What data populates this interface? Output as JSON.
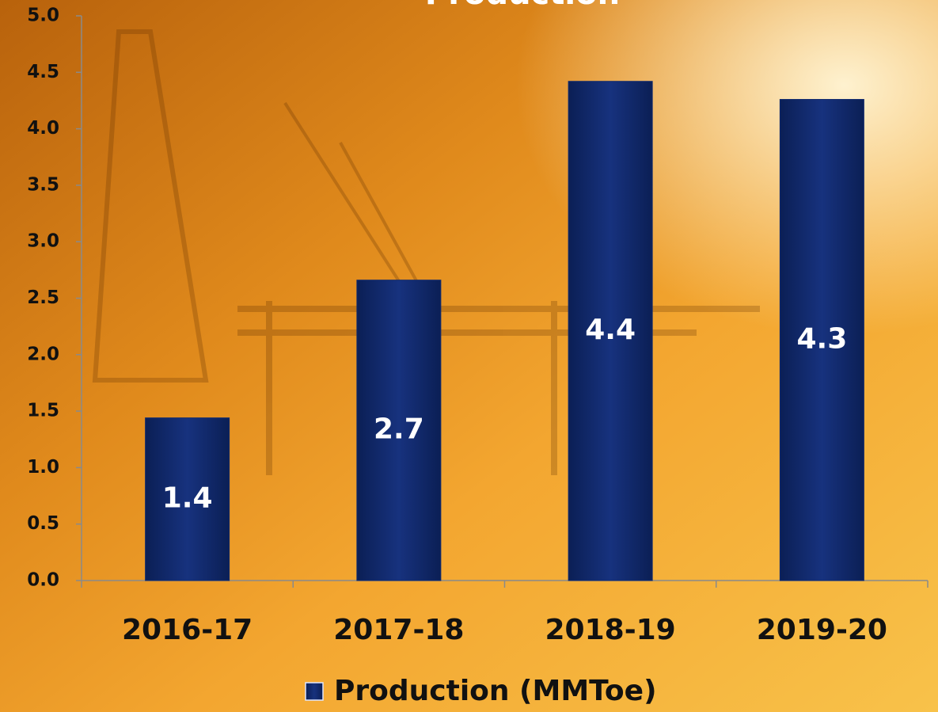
{
  "chart_data": {
    "type": "bar",
    "title": "Production",
    "categories": [
      "2016-17",
      "2017-18",
      "2018-19",
      "2019-20"
    ],
    "series": [
      {
        "name": "Production (MMToe)",
        "color": "#102a6e",
        "values": [
          1.44,
          2.66,
          4.42,
          4.26
        ],
        "value_labels": [
          "1.4",
          "2.7",
          "4.4",
          "4.3"
        ]
      }
    ],
    "ylim": [
      0,
      5
    ],
    "yticks": [
      {
        "value": 0,
        "label": "0.0"
      },
      0.5,
      {
        "value": 1,
        "label": "1.0"
      },
      1.5,
      {
        "value": 2,
        "label": "2.0"
      },
      2.5,
      {
        "value": 3,
        "label": "3.0"
      },
      3.5,
      {
        "value": 4,
        "label": "4.0"
      },
      4.5,
      {
        "value": 5,
        "label": "5.0"
      }
    ],
    "grid": false,
    "legend": "bottom"
  }
}
